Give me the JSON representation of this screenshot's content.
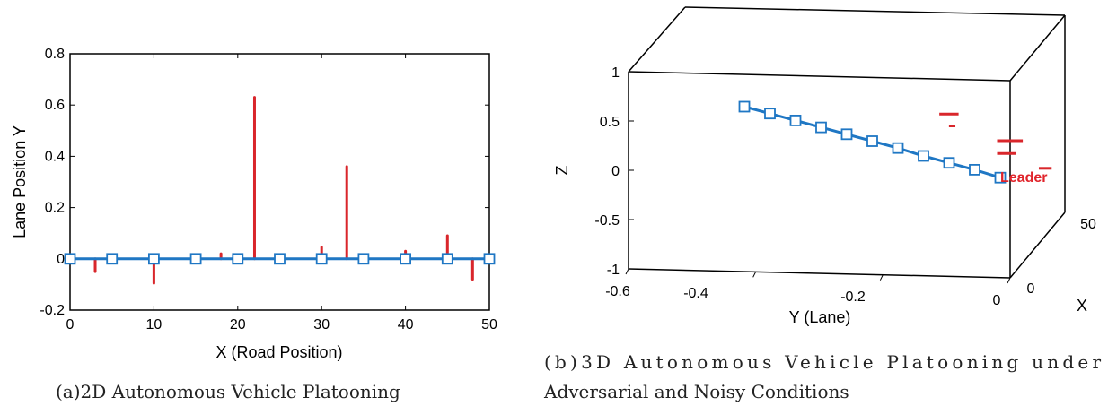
{
  "colors": {
    "platoon": "#1f77c4",
    "noise": "#d9262b",
    "leader_label": "#e0242b",
    "axis": "#000000"
  },
  "captions": {
    "left": "(a)2D Autonomous Vehicle Platooning",
    "right_line1": "(b)3D   Autonomous   Vehicle   Platooning   under",
    "right_line2": "Adversarial and Noisy Conditions"
  },
  "chart_data": [
    {
      "type": "line",
      "xlabel": "X (Road Position)",
      "ylabel": "Lane Position Y",
      "xlim": [
        0,
        50
      ],
      "ylim": [
        -0.2,
        0.8
      ],
      "xticks": [
        "0",
        "10",
        "20",
        "30",
        "40",
        "50"
      ],
      "yticks": [
        "-0.2",
        "0",
        "0.2",
        "0.4",
        "0.6",
        "0.8"
      ],
      "grid": false,
      "series": [
        {
          "kind": "line-with-markers",
          "marker": "square",
          "x": [
            0,
            5,
            10,
            15,
            20,
            25,
            30,
            35,
            40,
            45,
            50
          ],
          "y": [
            0,
            0,
            0,
            0,
            0,
            0,
            0,
            0,
            0,
            0,
            0
          ]
        },
        {
          "kind": "vertical-segments",
          "segments": [
            {
              "x": 3,
              "y0": 0,
              "y1": -0.05
            },
            {
              "x": 10,
              "y0": 0,
              "y1": -0.095
            },
            {
              "x": 18,
              "y0": 0,
              "y1": 0.02
            },
            {
              "x": 22,
              "y0": 0,
              "y1": 0.63
            },
            {
              "x": 30,
              "y0": 0,
              "y1": 0.045
            },
            {
              "x": 33,
              "y0": 0,
              "y1": 0.36
            },
            {
              "x": 40,
              "y0": 0,
              "y1": 0.03
            },
            {
              "x": 45,
              "y0": 0,
              "y1": 0.09
            },
            {
              "x": 48,
              "y0": 0,
              "y1": -0.08
            }
          ]
        }
      ]
    },
    {
      "type": "line",
      "projection": "3d",
      "xlabel": "X",
      "ylabel": "Y (Lane)",
      "zlabel": "Z",
      "xlim": [
        0,
        50
      ],
      "ylim": [
        -0.6,
        0
      ],
      "zlim": [
        -1,
        1
      ],
      "xticks": [
        "0",
        "50"
      ],
      "yticks": [
        "-0.6",
        "-0.4",
        "-0.2",
        "0"
      ],
      "zticks": [
        "-1",
        "-0.5",
        "0",
        "0.5",
        "1"
      ],
      "annotation": "Leader",
      "series": [
        {
          "kind": "line-with-markers",
          "marker": "square",
          "y": [
            -0.4,
            -0.35,
            -0.3,
            -0.25,
            -0.2,
            -0.15,
            -0.1,
            -0.05,
            0,
            0.05,
            0.1
          ],
          "z": [
            0.62,
            0.55,
            0.48,
            0.41,
            0.34,
            0.27,
            0.2,
            0.12,
            0.05,
            -0.02,
            -0.1
          ]
        },
        {
          "kind": "horizontal-segments",
          "segments": [
            {
              "y0": 0.01,
              "y1": 0.04,
              "z": 0.57
            },
            {
              "y0": 0.025,
              "y1": 0.035,
              "z": 0.45
            },
            {
              "y0": 0.1,
              "y1": 0.14,
              "z": 0.3
            },
            {
              "y0": 0.1,
              "y1": 0.13,
              "z": 0.17
            },
            {
              "y0": 0.165,
              "y1": 0.185,
              "z": 0.02
            }
          ]
        }
      ]
    }
  ]
}
